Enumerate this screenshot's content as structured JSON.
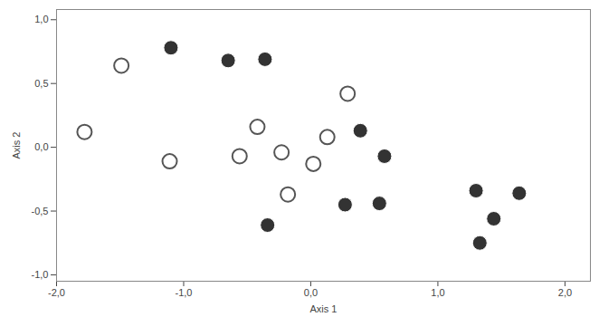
{
  "chart_data": {
    "type": "scatter",
    "x_label": "Axis 1",
    "y_label": "Axis 2",
    "xlim": [
      -2.0,
      2.2
    ],
    "ylim": [
      -1.05,
      1.08
    ],
    "xticks": [
      {
        "value": -2,
        "label": "-2,0"
      },
      {
        "value": -1,
        "label": "-1,0"
      },
      {
        "value": 0,
        "label": "0,0"
      },
      {
        "value": 1,
        "label": "1,0"
      },
      {
        "value": 2,
        "label": "2,0"
      }
    ],
    "yticks": [
      {
        "value": -1,
        "label": "-1,0"
      },
      {
        "value": -0.5,
        "label": "-0,5"
      },
      {
        "value": 0,
        "label": "0,0"
      },
      {
        "value": 0.5,
        "label": "0,5"
      },
      {
        "value": 1,
        "label": "1,0"
      }
    ],
    "grid": false,
    "series": [
      {
        "color": "#555555",
        "marker": "open_circle",
        "x": [
          -1.78,
          -1.49,
          -1.11,
          -0.42,
          -0.56,
          -0.23,
          -0.18,
          0.02,
          0.13,
          0.29
        ],
        "y": [
          0.12,
          0.64,
          -0.11,
          0.16,
          -0.07,
          -0.04,
          -0.37,
          -0.13,
          0.08,
          0.42
        ]
      },
      {
        "color": "#333333",
        "marker": "filled_circle",
        "x": [
          -1.1,
          -0.65,
          -0.36,
          -0.34,
          0.27,
          0.39,
          0.58,
          0.54,
          1.3,
          1.64,
          1.44,
          1.33
        ],
        "y": [
          0.78,
          0.68,
          0.69,
          -0.61,
          -0.45,
          0.13,
          -0.07,
          -0.44,
          -0.34,
          -0.36,
          -0.56,
          -0.75
        ]
      }
    ]
  }
}
